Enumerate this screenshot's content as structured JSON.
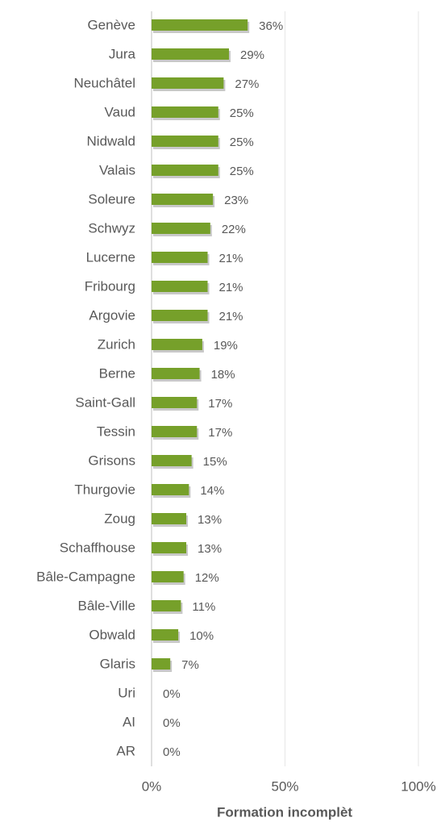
{
  "chart_data": {
    "type": "barh",
    "categories": [
      "Genève",
      "Jura",
      "Neuchâtel",
      "Vaud",
      "Nidwald",
      "Valais",
      "Soleure",
      "Schwyz",
      "Lucerne",
      "Fribourg",
      "Argovie",
      "Zurich",
      "Berne",
      "Saint-Gall",
      "Tessin",
      "Grisons",
      "Thurgovie",
      "Zoug",
      "Schaffhouse",
      "Bâle-Campagne",
      "Bâle-Ville",
      "Obwald",
      "Glaris",
      "Uri",
      "AI",
      "AR"
    ],
    "values": [
      36,
      29,
      27,
      25,
      25,
      25,
      23,
      22,
      21,
      21,
      21,
      19,
      18,
      17,
      17,
      15,
      14,
      13,
      13,
      12,
      11,
      10,
      7,
      0,
      0,
      0
    ],
    "value_labels": [
      "36%",
      "29%",
      "27%",
      "25%",
      "25%",
      "25%",
      "23%",
      "22%",
      "21%",
      "21%",
      "21%",
      "19%",
      "18%",
      "17%",
      "17%",
      "15%",
      "14%",
      "13%",
      "13%",
      "12%",
      "11%",
      "10%",
      "7%",
      "0%",
      "0%",
      "0%"
    ],
    "color": "#76a02a",
    "xlim": [
      0,
      100
    ],
    "xticks": [
      {
        "value": 0,
        "label": "0%"
      },
      {
        "value": 50,
        "label": "50%"
      },
      {
        "value": 100,
        "label": "100%"
      }
    ],
    "grid": true,
    "xlabel": "Formation incomplèt"
  }
}
